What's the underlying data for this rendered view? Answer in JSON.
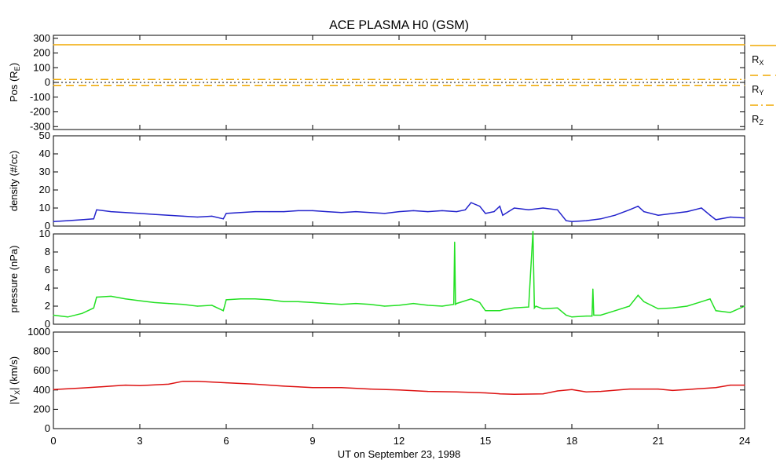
{
  "chart_data": [
    {
      "type": "line",
      "title": "ACE PLASMA H0 (GSM)",
      "ylabel": "Pos (R",
      "ylabel_sub": "E",
      "ylabel_close": ")",
      "ylim": [
        -320,
        320
      ],
      "yticks": [
        -300,
        -200,
        -100,
        0,
        100,
        200,
        300
      ],
      "legend_placement": "right",
      "series": [
        {
          "name": "R",
          "sub": "X",
          "color": "#f0a800",
          "style": "solid",
          "x": [
            0,
            24
          ],
          "values": [
            256,
            256
          ]
        },
        {
          "name": "R",
          "sub": "Y",
          "color": "#f0a800",
          "style": "dashed",
          "x": [
            0,
            24
          ],
          "values": [
            -20,
            -20
          ]
        },
        {
          "name": "R",
          "sub": "Z",
          "color": "#f0a800",
          "style": "dashdot",
          "x": [
            0,
            24
          ],
          "values": [
            20,
            20
          ]
        }
      ],
      "zero_line": true
    },
    {
      "type": "line",
      "ylabel": "density (#/cc)",
      "ylim": [
        0,
        50
      ],
      "yticks": [
        0,
        10,
        20,
        30,
        40,
        50
      ],
      "series": [
        {
          "color": "#2222cc",
          "x": [
            0,
            0.5,
            1,
            1.4,
            1.5,
            2,
            2.5,
            3,
            3.5,
            4,
            4.5,
            5,
            5.5,
            5.9,
            6,
            6.5,
            7,
            7.5,
            8,
            8.5,
            9,
            9.5,
            10,
            10.5,
            11,
            11.5,
            12,
            12.5,
            13,
            13.5,
            14,
            14.3,
            14.5,
            14.8,
            15,
            15.3,
            15.5,
            15.6,
            16,
            16.5,
            17,
            17.5,
            17.8,
            18,
            18.5,
            19,
            19.5,
            20,
            20.3,
            20.5,
            21,
            21.5,
            22,
            22.5,
            22.8,
            23,
            23.5,
            24
          ],
          "values": [
            2.5,
            3,
            3.5,
            4,
            9,
            8,
            7.5,
            7,
            6.5,
            6,
            5.5,
            5,
            5.5,
            4,
            7,
            7.5,
            8,
            8,
            8,
            8.5,
            8.5,
            8,
            7.5,
            8,
            7.5,
            7,
            8,
            8.5,
            8,
            8.5,
            8,
            9,
            13,
            11,
            7,
            8,
            11,
            6,
            10,
            9,
            10,
            9,
            3,
            2.5,
            3,
            4,
            6,
            9,
            11,
            8,
            6,
            7,
            8,
            10,
            6,
            3.5,
            5,
            4.5
          ]
        }
      ]
    },
    {
      "type": "line",
      "ylabel": "pressure (nPa)",
      "ylim": [
        0,
        10
      ],
      "yticks": [
        0,
        2,
        4,
        6,
        8,
        10
      ],
      "series": [
        {
          "color": "#22e022",
          "x": [
            0,
            0.5,
            1,
            1.4,
            1.5,
            2,
            2.5,
            3,
            3.5,
            4,
            4.5,
            5,
            5.5,
            5.9,
            6,
            6.5,
            7,
            7.5,
            8,
            8.5,
            9,
            9.5,
            10,
            10.5,
            11,
            11.5,
            12,
            12.5,
            13,
            13.5,
            13.9,
            13.93,
            13.96,
            14,
            14.5,
            14.8,
            15,
            15.5,
            15.6,
            16,
            16.5,
            16.65,
            16.7,
            16.75,
            17,
            17.5,
            17.8,
            18,
            18.5,
            18.7,
            18.73,
            18.76,
            19,
            19.5,
            20,
            20.3,
            20.5,
            21,
            21.5,
            22,
            22.5,
            22.8,
            23,
            23.5,
            24
          ],
          "values": [
            1,
            0.8,
            1.2,
            1.8,
            3,
            3.1,
            2.8,
            2.6,
            2.4,
            2.3,
            2.2,
            2,
            2.1,
            1.5,
            2.7,
            2.8,
            2.8,
            2.7,
            2.5,
            2.5,
            2.4,
            2.3,
            2.2,
            2.3,
            2.2,
            2,
            2.1,
            2.3,
            2.1,
            2,
            2.2,
            9.1,
            2.2,
            2.3,
            2.8,
            2.4,
            1.5,
            1.5,
            1.6,
            1.8,
            1.9,
            10.3,
            1.8,
            2,
            1.7,
            1.8,
            1,
            0.8,
            0.9,
            0.9,
            3.9,
            1,
            1,
            1.5,
            2,
            3.2,
            2.5,
            1.7,
            1.8,
            2,
            2.5,
            2.8,
            1.5,
            1.3,
            2
          ]
        }
      ]
    },
    {
      "type": "line",
      "ylabel": "|V",
      "ylabel_sub": "X",
      "ylabel_close": "| (km/s)",
      "ylim": [
        0,
        1000
      ],
      "yticks": [
        0,
        200,
        400,
        600,
        800,
        1000
      ],
      "series": [
        {
          "color": "#dd1111",
          "x": [
            0,
            1,
            2,
            2.5,
            3,
            4,
            4.5,
            5,
            6,
            7,
            8,
            9,
            10,
            11,
            12,
            13,
            14,
            15,
            15.5,
            16,
            17,
            17.5,
            18,
            18.5,
            19,
            20,
            21,
            21.5,
            22,
            23,
            23.5,
            24
          ],
          "values": [
            405,
            420,
            440,
            450,
            445,
            460,
            490,
            490,
            475,
            460,
            440,
            425,
            425,
            410,
            400,
            385,
            380,
            370,
            360,
            355,
            360,
            390,
            405,
            380,
            385,
            410,
            410,
            395,
            405,
            425,
            450,
            450
          ]
        }
      ]
    }
  ],
  "x_axis": {
    "label": "UT on September 23, 1998",
    "ticks": [
      "0",
      "3",
      "6",
      "9",
      "12",
      "15",
      "18",
      "21",
      "24"
    ],
    "xlim": [
      0,
      24
    ]
  }
}
